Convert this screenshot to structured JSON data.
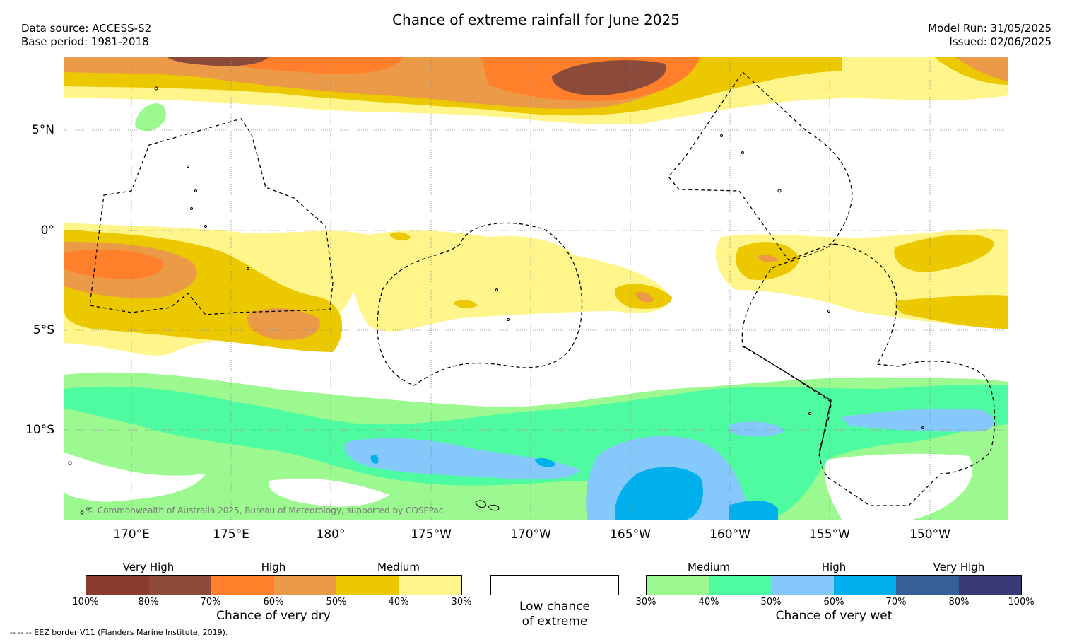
{
  "header": {
    "title": "Chance of extreme rainfall for June 2025",
    "data_source": "Data source: ACCESS-S2",
    "base_period": "Base period: 1981-2018",
    "model_run": "Model Run: 31/05/2025",
    "issued": "Issued: 02/06/2025"
  },
  "map": {
    "lat_labels": [
      "5°N",
      "0°",
      "5°S",
      "10°S"
    ],
    "lon_labels": [
      "170°E",
      "175°E",
      "180°",
      "175°W",
      "170°W",
      "165°W",
      "160°W",
      "155°W",
      "150°W"
    ],
    "credit": "© Commonwealth of Australia 2025, Bureau of Meteorology, supported by COSPPac"
  },
  "legend": {
    "dry": {
      "levels": [
        "Very High",
        "High",
        "Medium"
      ],
      "percents": [
        "100%",
        "80%",
        "70%",
        "60%",
        "50%",
        "40%",
        "30%"
      ],
      "caption": "Chance of very dry",
      "colors": [
        "#8b3a2e",
        "#8b4a3a",
        "#ff7f2a",
        "#eb9a48",
        "#ebc800",
        "#fff58a"
      ]
    },
    "none": {
      "caption_line1": "Low chance",
      "caption_line2": "of extreme",
      "color": "#ffffff"
    },
    "wet": {
      "levels": [
        "Medium",
        "High",
        "Very High"
      ],
      "percents": [
        "30%",
        "40%",
        "50%",
        "60%",
        "70%",
        "80%",
        "100%"
      ],
      "caption": "Chance of very wet",
      "colors": [
        "#9bf98f",
        "#4ffba0",
        "#85c8fb",
        "#00b0ec",
        "#355f99",
        "#3b3a78"
      ]
    }
  },
  "footer": {
    "eez_note": "--  --  -- EEZ border V11 (Flanders Marine Institute, 2019)."
  }
}
